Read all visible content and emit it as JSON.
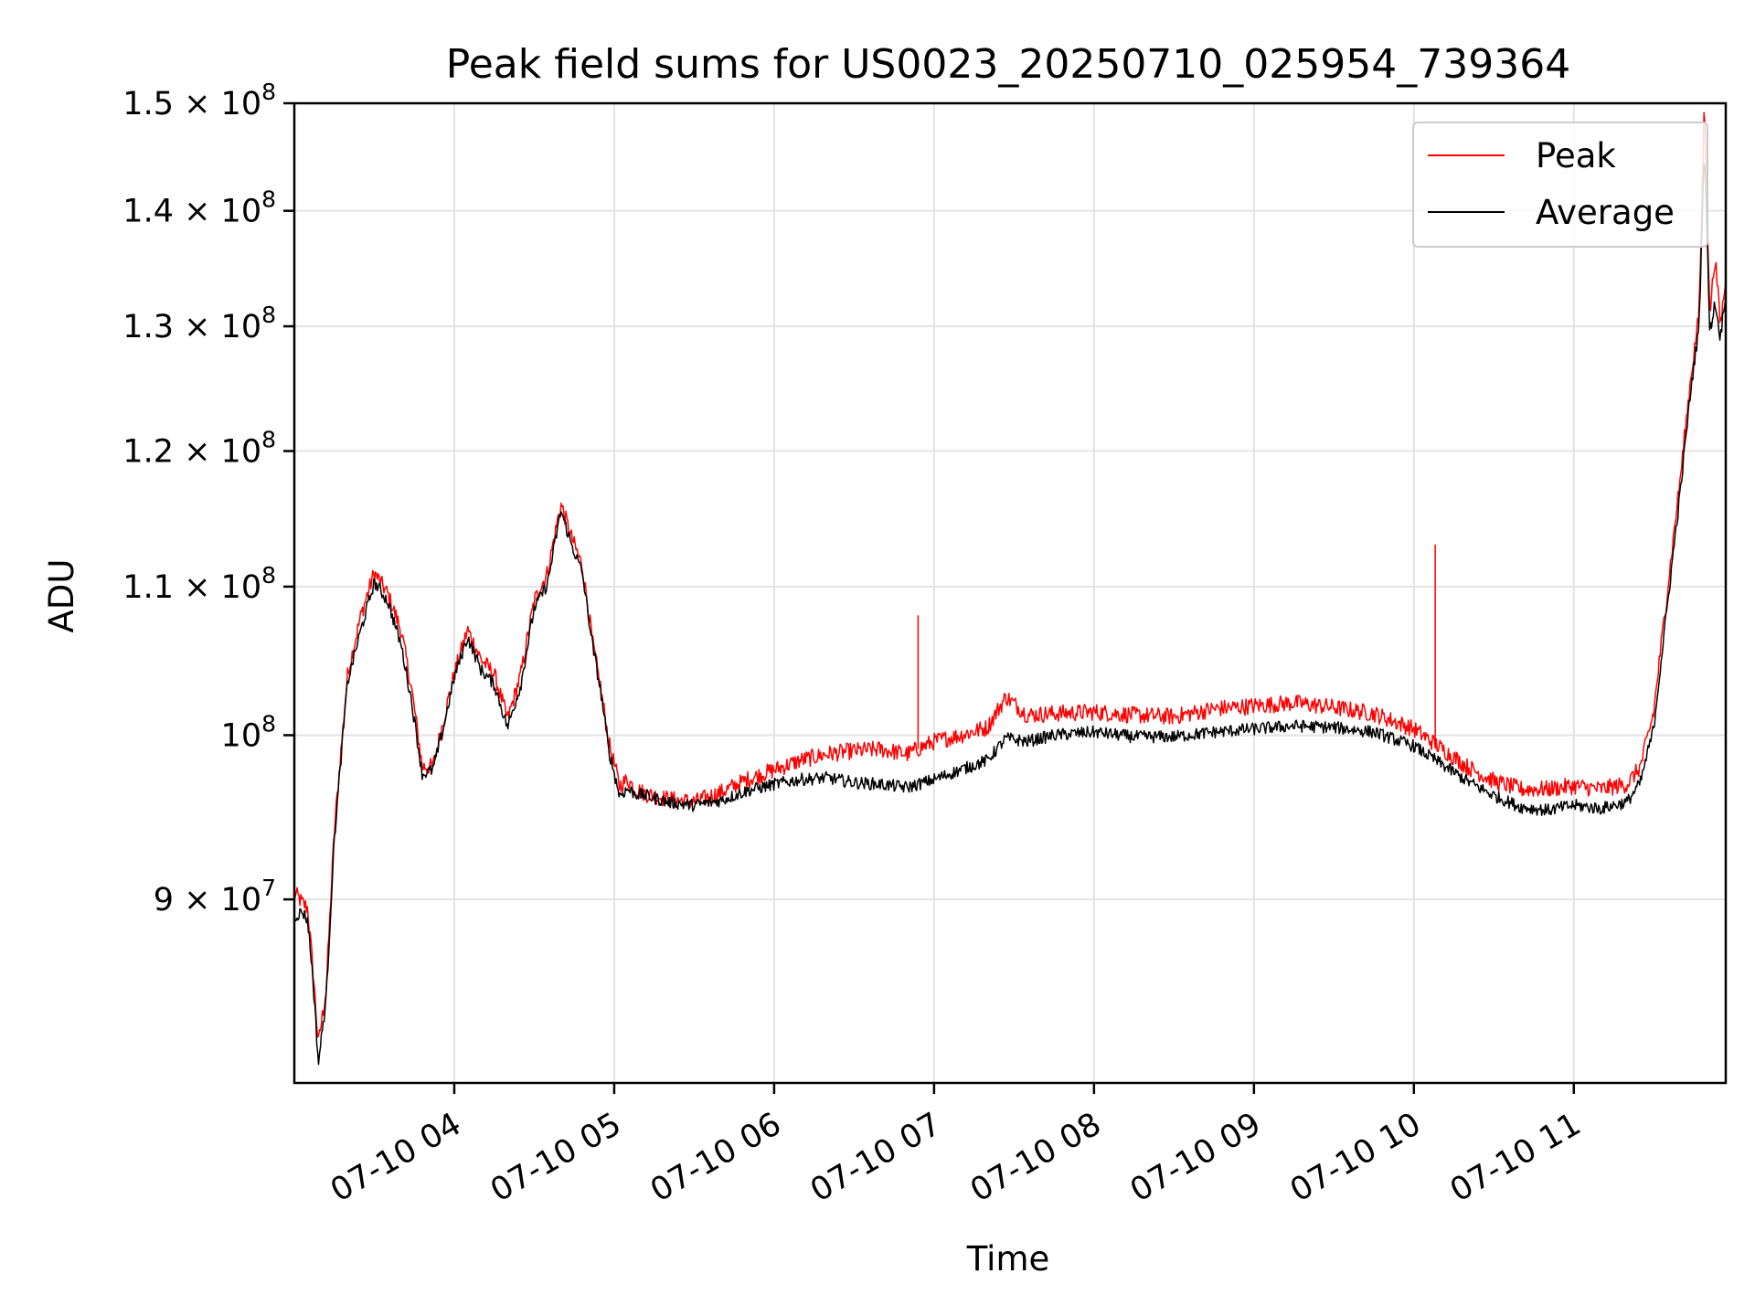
{
  "chart_data": {
    "type": "line",
    "title": "Peak field sums for US0023_20250710_025954_739364",
    "xlabel": "Time",
    "ylabel": "ADU",
    "yscale": "log",
    "ylim": [
      80000000,
      150000000
    ],
    "xlim": [
      "2025-07-10 03:00",
      "2025-07-10 11:57"
    ],
    "grid": true,
    "legend_position": "top-right",
    "x_ticks": [
      {
        "x": "2025-07-10 04:00",
        "label": "07-10 04"
      },
      {
        "x": "2025-07-10 05:00",
        "label": "07-10 05"
      },
      {
        "x": "2025-07-10 06:00",
        "label": "07-10 06"
      },
      {
        "x": "2025-07-10 07:00",
        "label": "07-10 07"
      },
      {
        "x": "2025-07-10 08:00",
        "label": "07-10 08"
      },
      {
        "x": "2025-07-10 09:00",
        "label": "07-10 09"
      },
      {
        "x": "2025-07-10 10:00",
        "label": "07-10 10"
      },
      {
        "x": "2025-07-10 11:00",
        "label": "07-10 11"
      }
    ],
    "y_ticks": [
      {
        "value": 90000000,
        "mantissa": "9",
        "op": " × ",
        "base": "10",
        "exp": "7"
      },
      {
        "value": 100000000,
        "mantissa": "",
        "op": "",
        "base": "10",
        "exp": "8"
      },
      {
        "value": 110000000,
        "mantissa": "1.1",
        "op": " × ",
        "base": "10",
        "exp": "8"
      },
      {
        "value": 120000000,
        "mantissa": "1.2",
        "op": " × ",
        "base": "10",
        "exp": "8"
      },
      {
        "value": 130000000,
        "mantissa": "1.3",
        "op": " × ",
        "base": "10",
        "exp": "8"
      },
      {
        "value": 140000000,
        "mantissa": "1.4",
        "op": " × ",
        "base": "10",
        "exp": "8"
      },
      {
        "value": 150000000,
        "mantissa": "1.5",
        "op": " × ",
        "base": "10",
        "exp": "8"
      }
    ],
    "series": [
      {
        "name": "Peak",
        "color": "#ff0000",
        "x": [
          "2025-07-10 03:00",
          "2025-07-10 03:03",
          "2025-07-10 03:05",
          "2025-07-10 03:07",
          "2025-07-10 03:09",
          "2025-07-10 03:12",
          "2025-07-10 03:15",
          "2025-07-10 03:20",
          "2025-07-10 03:25",
          "2025-07-10 03:30",
          "2025-07-10 03:35",
          "2025-07-10 03:40",
          "2025-07-10 03:44",
          "2025-07-10 03:48",
          "2025-07-10 03:52",
          "2025-07-10 03:56",
          "2025-07-10 04:00",
          "2025-07-10 04:05",
          "2025-07-10 04:10",
          "2025-07-10 04:15",
          "2025-07-10 04:20",
          "2025-07-10 04:25",
          "2025-07-10 04:30",
          "2025-07-10 04:35",
          "2025-07-10 04:40",
          "2025-07-10 04:44",
          "2025-07-10 04:48",
          "2025-07-10 04:52",
          "2025-07-10 04:55",
          "2025-07-10 04:58",
          "2025-07-10 05:02",
          "2025-07-10 05:05",
          "2025-07-10 05:08",
          "2025-07-10 05:12",
          "2025-07-10 05:20",
          "2025-07-10 05:30",
          "2025-07-10 05:40",
          "2025-07-10 05:50",
          "2025-07-10 06:00",
          "2025-07-10 06:10",
          "2025-07-10 06:20",
          "2025-07-10 06:30",
          "2025-07-10 06:40",
          "2025-07-10 06:50",
          "2025-07-10 07:00",
          "2025-07-10 07:10",
          "2025-07-10 07:20",
          "2025-07-10 07:27",
          "2025-07-10 07:35",
          "2025-07-10 07:45",
          "2025-07-10 08:00",
          "2025-07-10 08:15",
          "2025-07-10 08:30",
          "2025-07-10 08:45",
          "2025-07-10 09:00",
          "2025-07-10 09:15",
          "2025-07-10 09:30",
          "2025-07-10 09:45",
          "2025-07-10 10:00",
          "2025-07-10 10:10",
          "2025-07-10 10:20",
          "2025-07-10 10:30",
          "2025-07-10 10:40",
          "2025-07-10 10:50",
          "2025-07-10 11:00",
          "2025-07-10 11:10",
          "2025-07-10 11:20",
          "2025-07-10 11:25",
          "2025-07-10 11:30",
          "2025-07-10 11:35",
          "2025-07-10 11:40",
          "2025-07-10 11:44",
          "2025-07-10 11:47",
          "2025-07-10 11:49",
          "2025-07-10 11:51",
          "2025-07-10 11:53",
          "2025-07-10 11:55",
          "2025-07-10 11:57"
        ],
        "y": [
          90400000,
          89800000,
          89500000,
          86000000,
          82000000,
          85000000,
          94000000,
          104000000,
          108000000,
          111000000,
          109500000,
          107000000,
          103000000,
          98000000,
          98000000,
          101000000,
          104000000,
          107000000,
          105000000,
          104000000,
          101000000,
          104000000,
          109000000,
          111000000,
          116000000,
          113500000,
          111500000,
          106000000,
          103000000,
          99500000,
          96800000,
          97200000,
          96600000,
          96300000,
          96000000,
          95800000,
          96400000,
          97200000,
          97800000,
          98400000,
          98800000,
          99000000,
          99100000,
          98800000,
          99600000,
          100000000,
          100500000,
          102500000,
          101300000,
          101400000,
          101500000,
          101300000,
          101200000,
          101700000,
          101900000,
          102100000,
          101800000,
          101400000,
          100400000,
          99200000,
          98000000,
          97100000,
          96600000,
          96600000,
          96800000,
          96600000,
          96900000,
          98000000,
          101500000,
          109500000,
          118000000,
          126000000,
          131000000,
          150000000,
          131000000,
          136000000,
          130000000,
          134000000
        ],
        "spikes": [
          {
            "x": "2025-07-10 06:54",
            "y": 108000000
          },
          {
            "x": "2025-07-10 10:08",
            "y": 113000000
          }
        ]
      },
      {
        "name": "Average",
        "color": "#000000",
        "x": [
          "2025-07-10 03:00",
          "2025-07-10 03:03",
          "2025-07-10 03:05",
          "2025-07-10 03:07",
          "2025-07-10 03:09",
          "2025-07-10 03:12",
          "2025-07-10 03:15",
          "2025-07-10 03:20",
          "2025-07-10 03:25",
          "2025-07-10 03:30",
          "2025-07-10 03:35",
          "2025-07-10 03:40",
          "2025-07-10 03:44",
          "2025-07-10 03:48",
          "2025-07-10 03:52",
          "2025-07-10 03:56",
          "2025-07-10 04:00",
          "2025-07-10 04:05",
          "2025-07-10 04:10",
          "2025-07-10 04:15",
          "2025-07-10 04:20",
          "2025-07-10 04:25",
          "2025-07-10 04:30",
          "2025-07-10 04:35",
          "2025-07-10 04:40",
          "2025-07-10 04:44",
          "2025-07-10 04:48",
          "2025-07-10 04:52",
          "2025-07-10 04:55",
          "2025-07-10 04:58",
          "2025-07-10 05:02",
          "2025-07-10 05:05",
          "2025-07-10 05:08",
          "2025-07-10 05:12",
          "2025-07-10 05:20",
          "2025-07-10 05:30",
          "2025-07-10 05:40",
          "2025-07-10 05:50",
          "2025-07-10 06:00",
          "2025-07-10 06:10",
          "2025-07-10 06:20",
          "2025-07-10 06:30",
          "2025-07-10 06:40",
          "2025-07-10 06:50",
          "2025-07-10 07:00",
          "2025-07-10 07:10",
          "2025-07-10 07:20",
          "2025-07-10 07:27",
          "2025-07-10 07:35",
          "2025-07-10 07:45",
          "2025-07-10 08:00",
          "2025-07-10 08:15",
          "2025-07-10 08:30",
          "2025-07-10 08:45",
          "2025-07-10 09:00",
          "2025-07-10 09:15",
          "2025-07-10 09:30",
          "2025-07-10 09:45",
          "2025-07-10 10:00",
          "2025-07-10 10:10",
          "2025-07-10 10:20",
          "2025-07-10 10:30",
          "2025-07-10 10:40",
          "2025-07-10 10:50",
          "2025-07-10 11:00",
          "2025-07-10 11:10",
          "2025-07-10 11:20",
          "2025-07-10 11:25",
          "2025-07-10 11:30",
          "2025-07-10 11:35",
          "2025-07-10 11:40",
          "2025-07-10 11:44",
          "2025-07-10 11:47",
          "2025-07-10 11:49",
          "2025-07-10 11:51",
          "2025-07-10 11:53",
          "2025-07-10 11:55",
          "2025-07-10 11:57"
        ],
        "y": [
          89000000,
          89300000,
          88800000,
          85500000,
          81000000,
          84500000,
          93500000,
          103500000,
          107000000,
          110300000,
          109000000,
          106000000,
          102200000,
          97500000,
          97800000,
          100500000,
          103800000,
          106500000,
          104300000,
          103300000,
          100500000,
          103300000,
          108500000,
          110200000,
          115500000,
          113000000,
          111000000,
          105800000,
          102800000,
          99000000,
          96200000,
          96600000,
          96300000,
          96200000,
          95800000,
          95600000,
          95900000,
          96500000,
          96900000,
          97200000,
          97300000,
          97000000,
          96900000,
          96700000,
          97200000,
          97800000,
          98400000,
          99800000,
          99600000,
          100000000,
          100200000,
          99900000,
          99900000,
          100200000,
          100400000,
          100600000,
          100500000,
          100200000,
          99300000,
          98200000,
          97100000,
          96200000,
          95500000,
          95300000,
          95600000,
          95400000,
          95800000,
          97000000,
          100500000,
          108500000,
          117000000,
          125000000,
          130000000,
          146000000,
          129500000,
          132000000,
          129000000,
          133000000
        ]
      }
    ]
  }
}
